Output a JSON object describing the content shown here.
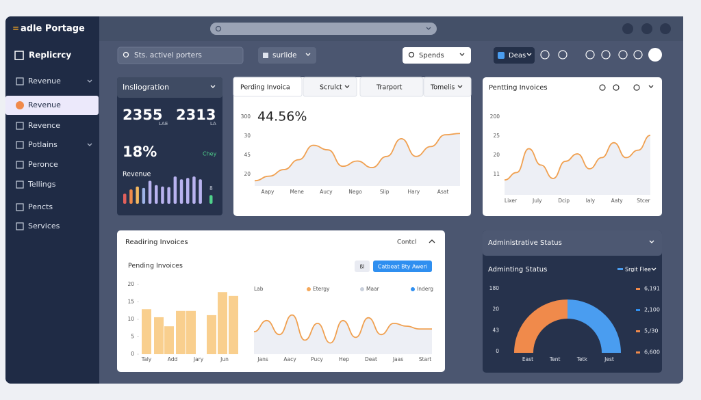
{
  "header": {
    "brand_mark": "=",
    "brand": "adle Portage"
  },
  "sidebar": {
    "title": "Replicrcy",
    "items": [
      "Revenue",
      "Revenue",
      "Revence",
      "Potlains",
      "Peronce",
      "Tellings",
      "Pencts",
      "Services"
    ]
  },
  "toolbar": {
    "search": "Sts. activel porters",
    "filter": "surlide",
    "spends": "Spends",
    "deas": "Deas"
  },
  "summary_card": {
    "title": "Insliogration",
    "stats": [
      {
        "value": 2355,
        "unit": "LAE"
      },
      {
        "value": 2313,
        "unit": "LA"
      }
    ],
    "percent": "18%",
    "badge": "Chey",
    "label": "Revenue",
    "side_label": "8",
    "bars": {
      "ylim": [
        0,
        100
      ],
      "values": [
        35,
        50,
        60,
        55,
        80,
        65,
        60,
        58,
        95,
        85,
        90,
        95,
        85,
        30
      ],
      "colors": [
        "#e2605c",
        "#f08a4b",
        "#f4b860",
        "#9fb4e8",
        "#b9b3f0",
        "#b9b3f0",
        "#b9b3f0",
        "#b9b3f0",
        "#b9b3f0",
        "#b9b3f0",
        "#b9b3f0",
        "#b9b3f0",
        "#b9b3f0",
        "#4fd18b"
      ]
    }
  },
  "invoice_card": {
    "tabs": [
      "Perding Invoica",
      "Scrulct",
      "Trarport",
      "Tomelis"
    ],
    "headline": "44.56%",
    "y_labels": [
      "300",
      "30",
      "45",
      "20"
    ],
    "x_labels": [
      "Aapy",
      "Mene",
      "Aucy",
      "Nego",
      "Slip",
      "Hary",
      "Asat"
    ],
    "line": {
      "ylim": [
        0,
        100
      ],
      "color": "#f0a050",
      "values": [
        8,
        15,
        25,
        40,
        62,
        55,
        30,
        38,
        28,
        45,
        72,
        45,
        60,
        78,
        80
      ]
    }
  },
  "pending_card": {
    "title": "Pentting Invoices",
    "y_labels": [
      "200",
      "25",
      "20",
      "11"
    ],
    "x_labels": [
      "Lixer",
      "July",
      "Dcip",
      "Ialy",
      "Aaty",
      "Stcer"
    ],
    "line": {
      "ylim": [
        0,
        100
      ],
      "color": "#f0a050",
      "values": [
        20,
        30,
        62,
        40,
        22,
        45,
        55,
        35,
        50,
        70,
        50,
        60,
        80
      ]
    }
  },
  "reading_card": {
    "title": "Readiring Invoices",
    "action": "Contcl",
    "subtitle": "Pending Invoices",
    "chip": "ßl",
    "button": "Catbeat Bty Aweri",
    "bar_chart": {
      "ylim": [
        0,
        20
      ],
      "yticks": [
        0,
        5,
        10,
        15,
        20
      ],
      "x_labels": [
        "Taly",
        "Add",
        "Jary",
        "Jun"
      ],
      "color": "#f9cf8e",
      "values": [
        12.9,
        10.6,
        8,
        12.4,
        12.4,
        11.2,
        17.8,
        16.7
      ]
    },
    "line_chart": {
      "axis_label": "Lab",
      "legend": [
        {
          "name": "Etergy",
          "color": "#f5a85a"
        },
        {
          "name": "Maar",
          "color": "#c9d0dc"
        },
        {
          "name": "Inderg",
          "color": "#2f8ff0"
        }
      ],
      "x_labels": [
        "Jans",
        "Aacy",
        "Pucy",
        "Hep",
        "Deat",
        "Jaas",
        "Start"
      ],
      "line": {
        "ylim": [
          0,
          100
        ],
        "color": "#f0a050",
        "values": [
          40,
          60,
          35,
          70,
          25,
          55,
          20,
          60,
          30,
          65,
          35,
          55,
          50,
          45,
          45
        ]
      }
    }
  },
  "status_card": {
    "title": "Administrative Status",
    "subtitle": "Adminting Status",
    "filter": "Srgit Flee",
    "y_labels": [
      "180",
      "20",
      "43",
      "0"
    ],
    "x_labels": [
      "East",
      "Tent",
      "Tetk",
      "Jest"
    ],
    "legend": [
      {
        "label": "6,191",
        "color": "#f08a4b"
      },
      {
        "label": "2,100",
        "color": "#2f8ff0"
      },
      {
        "label": "5,/30",
        "color": "#f08a4b"
      },
      {
        "label": "6,600",
        "color": "#f08a4b"
      }
    ],
    "gauge": {
      "values": [
        50,
        50
      ],
      "colors": [
        "#f08a4b",
        "#4a9df0"
      ]
    }
  }
}
